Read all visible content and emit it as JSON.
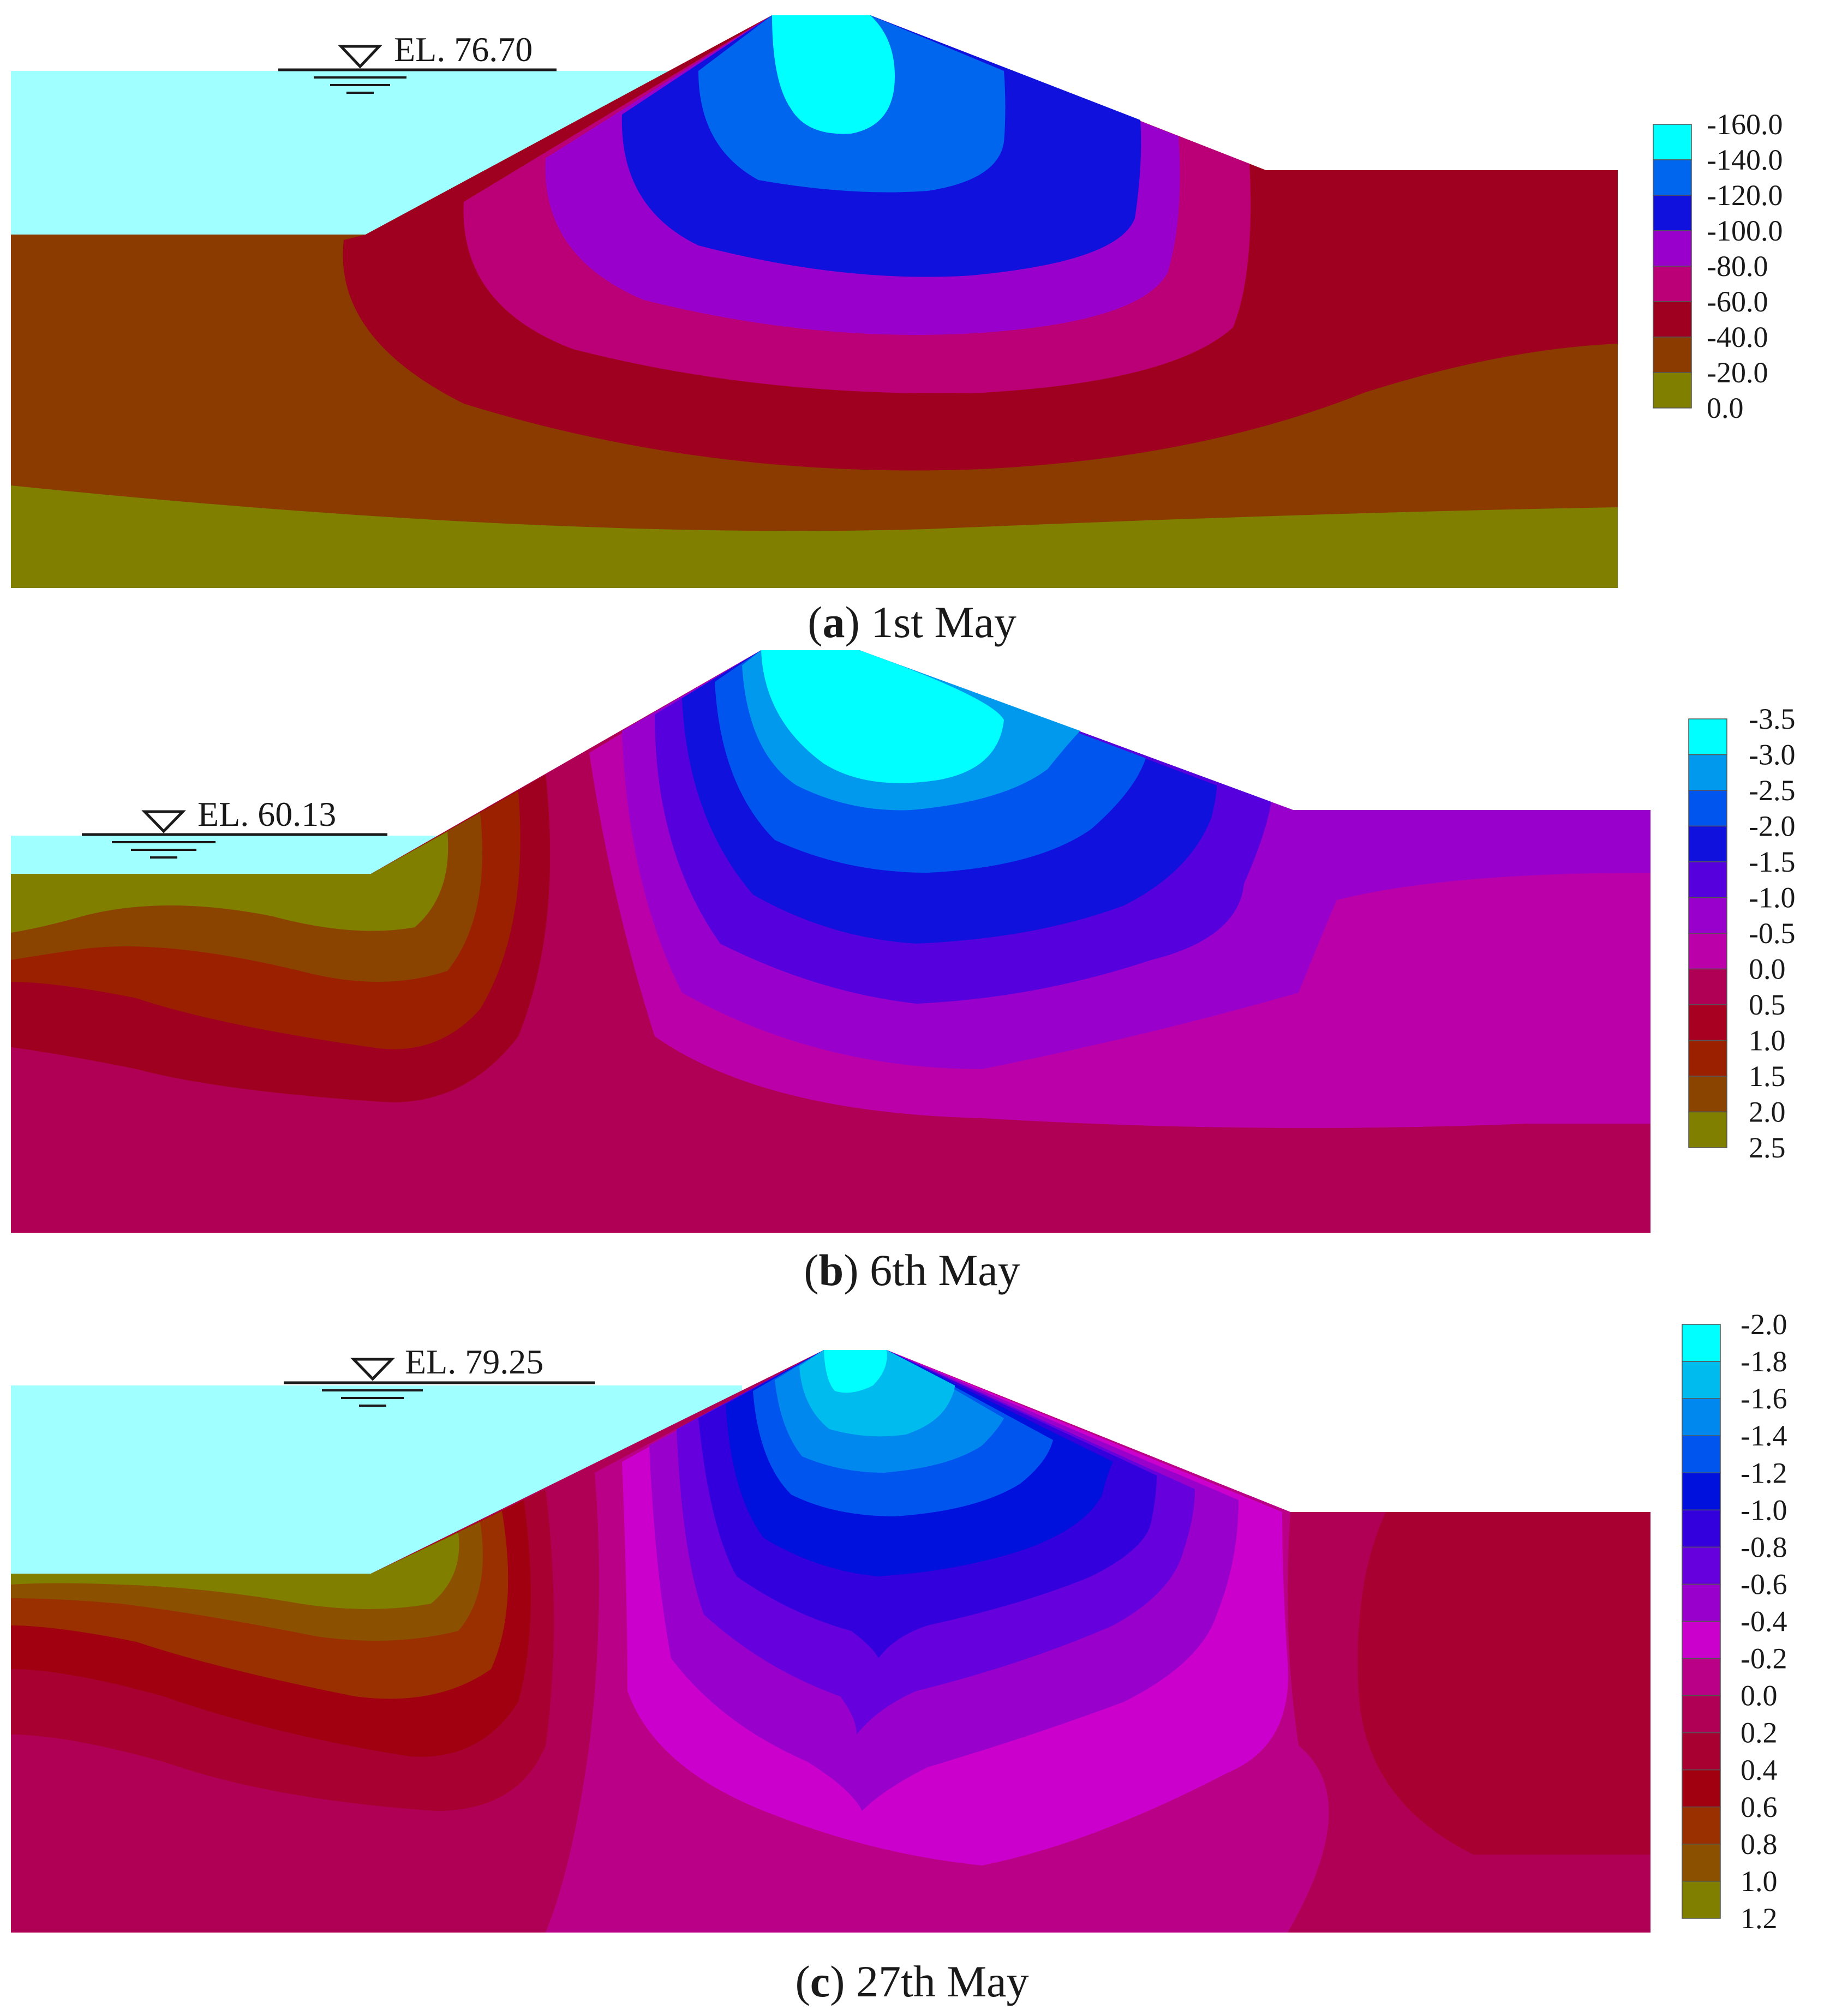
{
  "panels": [
    {
      "id": "a",
      "caption_letter": "a",
      "caption_text": "1st May",
      "water_level_label": "EL. 76.70",
      "legend": [
        "-160.0",
        "-140.0",
        "-120.0",
        "-100.0",
        "-80.0",
        "-60.0",
        "-40.0",
        "-20.0",
        "0.0"
      ],
      "legend_colors": [
        "#00FFFF",
        "#0066EE",
        "#1111DD",
        "#9900CC",
        "#BB0077",
        "#A00020",
        "#8B3A00",
        "#807F00"
      ]
    },
    {
      "id": "b",
      "caption_letter": "b",
      "caption_text": "6th May",
      "water_level_label": "EL. 60.13",
      "legend": [
        "-3.5",
        "-3.0",
        "-2.5",
        "-2.0",
        "-1.5",
        "-1.0",
        "-0.5",
        "0.0",
        "0.5",
        "1.0",
        "1.5",
        "2.0",
        "2.5"
      ],
      "legend_colors": [
        "#00FFFF",
        "#0099EE",
        "#0055EE",
        "#1111DD",
        "#5500DD",
        "#9900CC",
        "#BB00AA",
        "#B00055",
        "#A80020",
        "#9A2000",
        "#8B4400",
        "#807F00"
      ]
    },
    {
      "id": "c",
      "caption_letter": "c",
      "caption_text": "27th May",
      "water_level_label": "EL. 79.25",
      "legend": [
        "-2.0",
        "-1.8",
        "-1.6",
        "-1.4",
        "-1.2",
        "-1.0",
        "-0.8",
        "-0.6",
        "-0.4",
        "-0.2",
        "0.0",
        "0.2",
        "0.4",
        "0.6",
        "0.8",
        "1.0",
        "1.2"
      ],
      "legend_colors": [
        "#00FFFF",
        "#00BBEE",
        "#0088EE",
        "#0055EE",
        "#0011DD",
        "#3300DD",
        "#6600DD",
        "#9900CC",
        "#CC00CC",
        "#BB0088",
        "#B00055",
        "#A80030",
        "#A00010",
        "#9A3000",
        "#8B5000",
        "#807F00"
      ]
    }
  ],
  "colors": {
    "water": "#A0FFFF",
    "text": "#1a1a1a"
  }
}
